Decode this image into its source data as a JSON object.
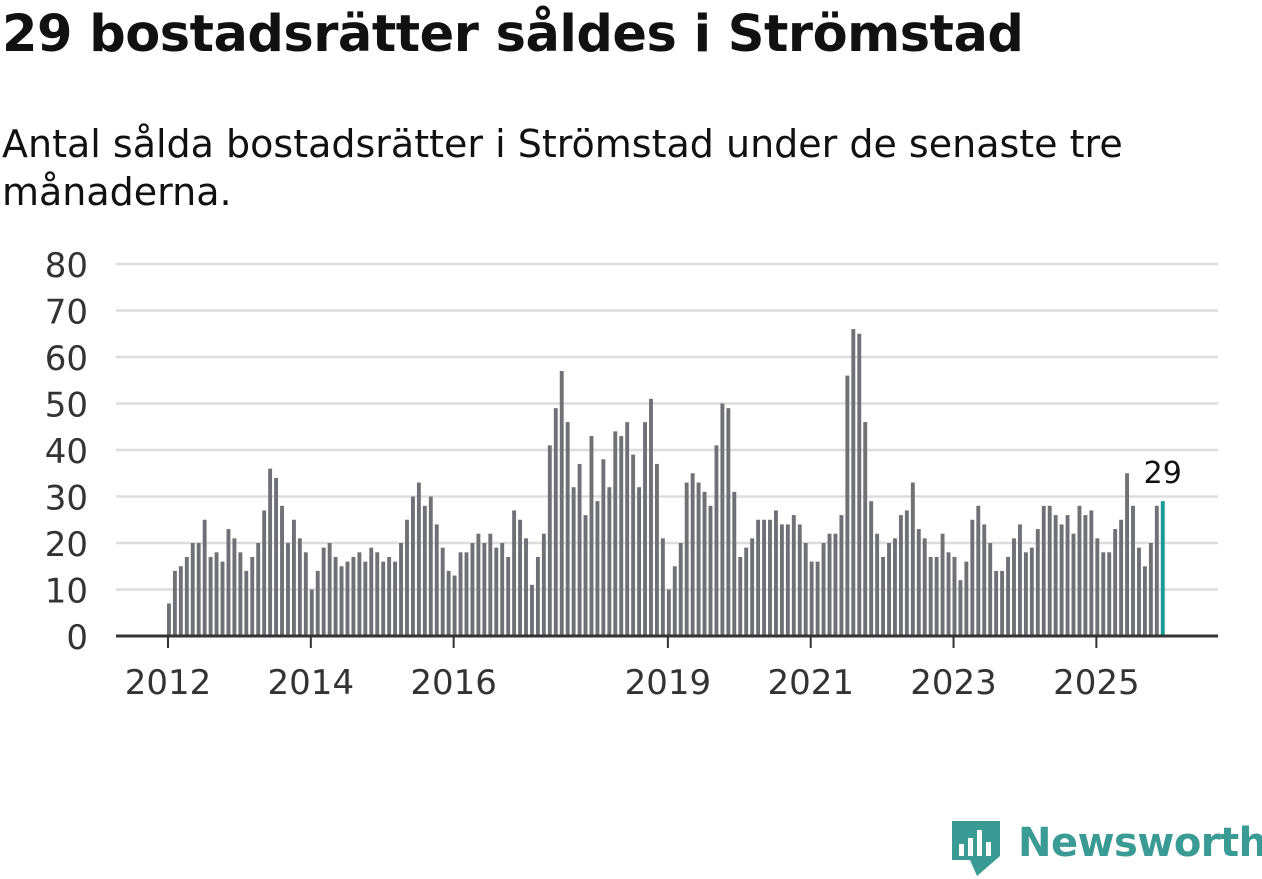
{
  "title": "29 bostadsrätter såldes i Strömstad",
  "subtitle": "Antal sålda bostadsrätter i Strömstad under de senaste tre månaderna.",
  "brand": {
    "name": "Newsworthy",
    "color": "#3a9a94",
    "icon": "newsworthy-chart-icon"
  },
  "colors": {
    "bar": "#707077",
    "highlight": "#1a9a94",
    "grid": "#dddddd",
    "axis": "#333333"
  },
  "chart_data": {
    "type": "bar",
    "title": "29 bostadsrätter såldes i Strömstad",
    "subtitle": "Antal sålda bostadsrätter i Strömstad under de senaste tre månaderna.",
    "xlabel": "",
    "ylabel": "",
    "ylim": [
      0,
      80
    ],
    "yticks": [
      0,
      10,
      20,
      30,
      40,
      50,
      60,
      70,
      80
    ],
    "grid": true,
    "start_year": 2012,
    "end_year": 2025,
    "xticks": [
      {
        "label": "2012",
        "year": 2012
      },
      {
        "label": "2014",
        "year": 2014
      },
      {
        "label": "2016",
        "year": 2016
      },
      {
        "label": "2019",
        "year": 2019
      },
      {
        "label": "2021",
        "year": 2021
      },
      {
        "label": "2023",
        "year": 2023
      },
      {
        "label": "2025",
        "year": 2025
      }
    ],
    "highlight_label": "29",
    "values": [
      7,
      14,
      15,
      17,
      20,
      20,
      25,
      17,
      18,
      16,
      23,
      21,
      18,
      14,
      17,
      20,
      27,
      36,
      34,
      28,
      20,
      25,
      21,
      18,
      10,
      14,
      19,
      20,
      17,
      15,
      16,
      17,
      18,
      16,
      19,
      18,
      16,
      17,
      16,
      20,
      25,
      30,
      33,
      28,
      30,
      24,
      19,
      14,
      13,
      18,
      18,
      20,
      22,
      20,
      22,
      19,
      20,
      17,
      27,
      25,
      21,
      11,
      17,
      22,
      41,
      49,
      57,
      46,
      32,
      37,
      26,
      43,
      29,
      38,
      32,
      44,
      43,
      46,
      39,
      32,
      46,
      51,
      37,
      21,
      10,
      15,
      20,
      33,
      35,
      33,
      31,
      28,
      41,
      50,
      49,
      31,
      17,
      19,
      21,
      25,
      25,
      25,
      27,
      24,
      24,
      26,
      24,
      20,
      16,
      16,
      20,
      22,
      22,
      26,
      56,
      66,
      65,
      46,
      29,
      22,
      17,
      20,
      21,
      26,
      27,
      33,
      23,
      21,
      17,
      17,
      22,
      18,
      17,
      12,
      16,
      25,
      28,
      24,
      20,
      14,
      14,
      17,
      21,
      24,
      18,
      19,
      23,
      28,
      28,
      26,
      24,
      26,
      22,
      28,
      26,
      27,
      21,
      18,
      18,
      23,
      25,
      35,
      28,
      19,
      15,
      20,
      28,
      29
    ]
  }
}
